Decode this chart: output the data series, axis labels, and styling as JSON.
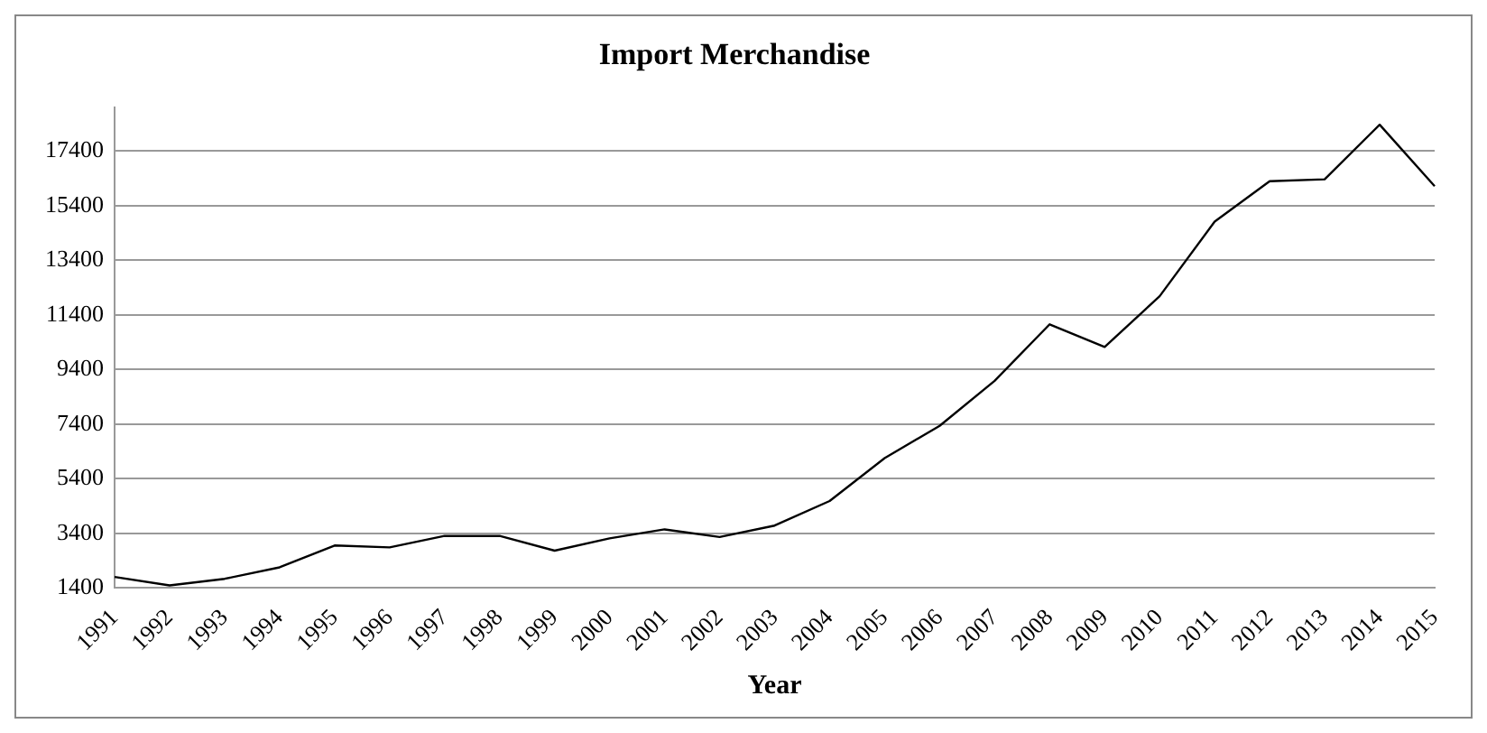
{
  "chart_data": {
    "type": "line",
    "title": "Import Merchandise",
    "xlabel": "Year",
    "categories": [
      "1991",
      "1992",
      "1993",
      "1994",
      "1995",
      "1996",
      "1997",
      "1998",
      "1999",
      "2000",
      "2001",
      "2002",
      "2003",
      "2004",
      "2005",
      "2006",
      "2007",
      "2008",
      "2009",
      "2010",
      "2011",
      "2012",
      "2013",
      "2014",
      "2015"
    ],
    "series": [
      {
        "color": "#000000",
        "values": [
          1800,
          1490,
          1730,
          2150,
          2950,
          2880,
          3300,
          3300,
          2760,
          3210,
          3540,
          3260,
          3680,
          4580,
          6150,
          7330,
          8980,
          11050,
          10220,
          12080,
          14810,
          16290,
          16360,
          18360,
          16110
        ]
      }
    ],
    "ylim": [
      1400,
      19000
    ],
    "yticks": [
      1400,
      3400,
      5400,
      7400,
      9400,
      11400,
      13400,
      15400,
      17400
    ],
    "grid": "y",
    "legend": false,
    "marker": "none",
    "line_style": "solid"
  }
}
